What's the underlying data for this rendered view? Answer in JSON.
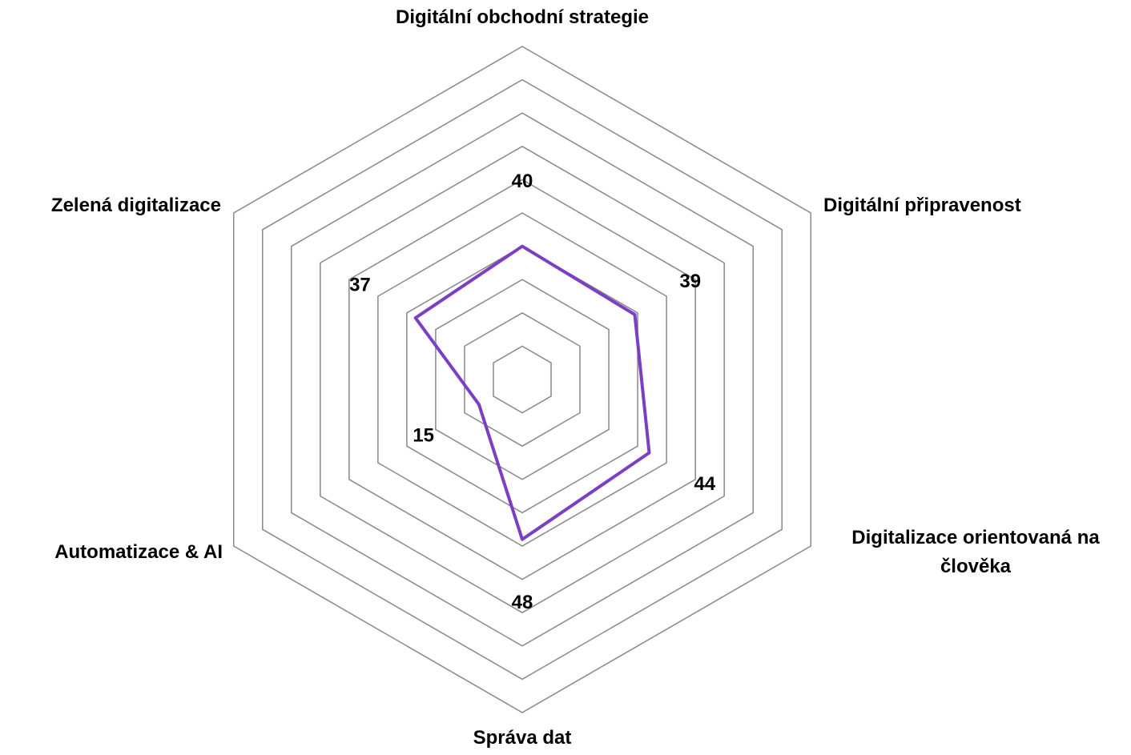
{
  "chart_data": {
    "type": "radar",
    "categories": [
      "Digitální obchodní strategie",
      "Digitální připravenost",
      "Digitalizace orientovaná na člověka",
      "Správa dat",
      "Automatizace & AI",
      "Zelená digitalizace"
    ],
    "values": [
      40,
      39,
      44,
      48,
      15,
      37
    ],
    "color": "#7b3fc4",
    "rlim": [
      0,
      100
    ],
    "rticks": [
      10,
      20,
      30,
      40,
      50,
      60,
      70,
      80,
      90,
      100
    ],
    "grid": true
  }
}
